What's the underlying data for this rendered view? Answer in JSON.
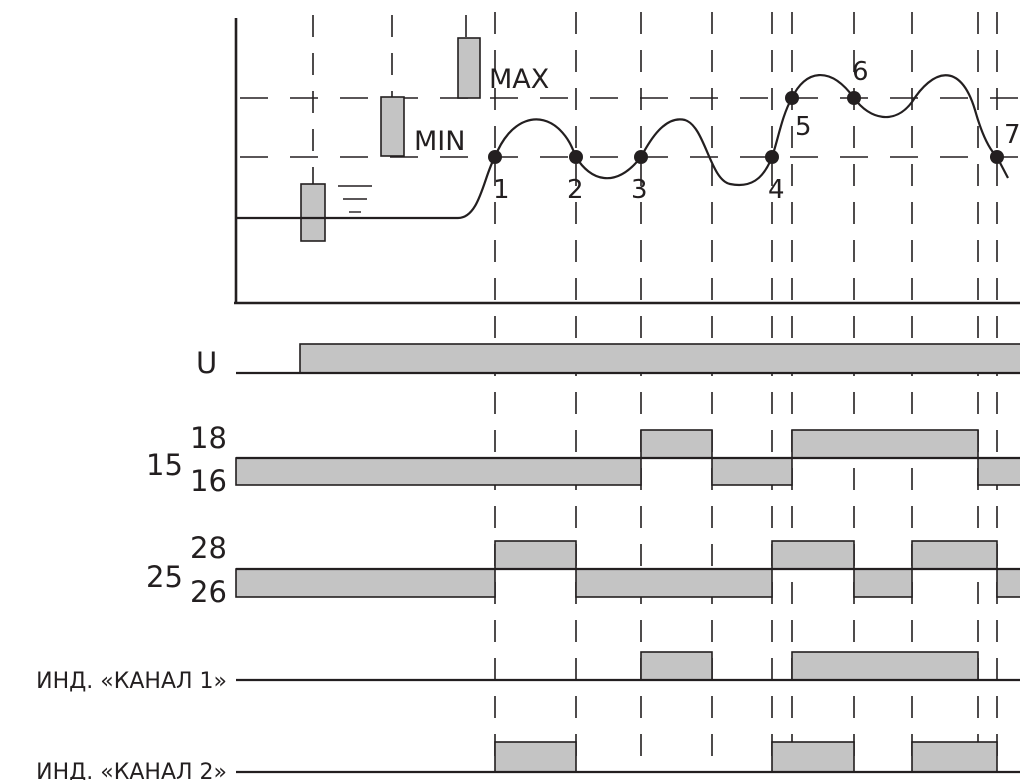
{
  "probes": {
    "ground_label": "",
    "min_label": "MIN",
    "max_label": "MAX"
  },
  "points": [
    "1",
    "2",
    "3",
    "4",
    "5",
    "6",
    "7"
  ],
  "rows": {
    "u": {
      "label": "U"
    },
    "relay1": {
      "common": "15",
      "upper": "18",
      "lower": "16"
    },
    "relay2": {
      "common": "25",
      "upper": "28",
      "lower": "26"
    },
    "ind1": {
      "label": "ИНД. «КАНАЛ 1»"
    },
    "ind2": {
      "label": "ИНД. «КАНАЛ 2»"
    }
  }
}
